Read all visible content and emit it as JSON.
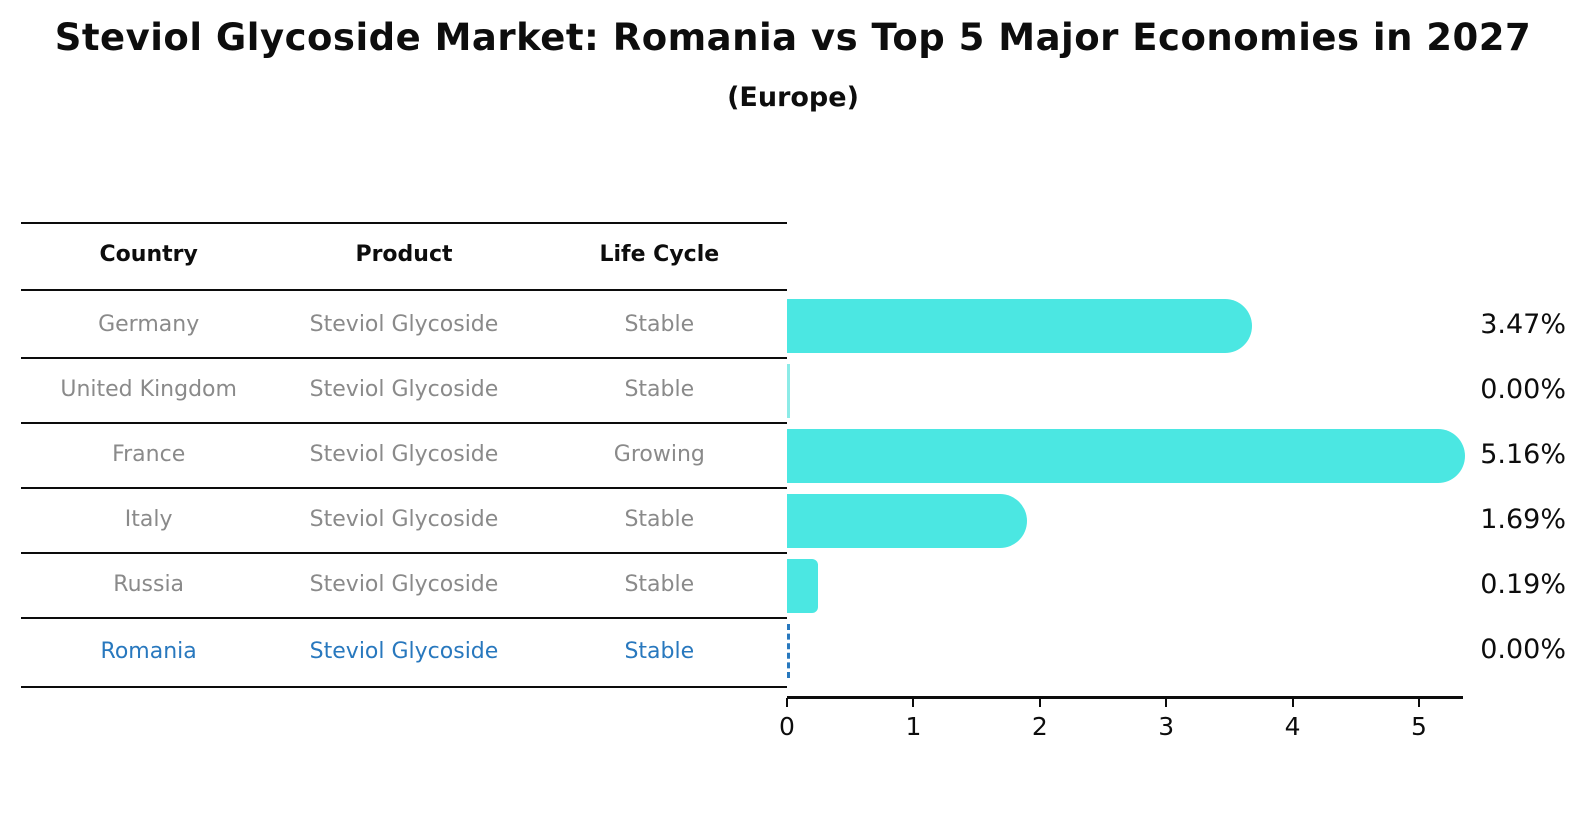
{
  "title": "Steviol Glycoside Market: Romania vs Top 5 Major Economies in 2027",
  "subtitle": "(Europe)",
  "table": {
    "headers": [
      "Country",
      "Product",
      "Life Cycle"
    ],
    "rows": [
      {
        "country": "Germany",
        "product": "Steviol Glycoside",
        "life_cycle": "Stable"
      },
      {
        "country": "United Kingdom",
        "product": "Steviol Glycoside",
        "life_cycle": "Stable"
      },
      {
        "country": "France",
        "product": "Steviol Glycoside",
        "life_cycle": "Growing"
      },
      {
        "country": "Italy",
        "product": "Steviol Glycoside",
        "life_cycle": "Stable"
      },
      {
        "country": "Russia",
        "product": "Steviol Glycoside",
        "life_cycle": "Stable"
      },
      {
        "country": "Romania",
        "product": "Steviol Glycoside",
        "life_cycle": "Stable"
      }
    ],
    "highlight_row": "Romania"
  },
  "chart_data": {
    "type": "bar",
    "orientation": "horizontal",
    "title": "Steviol Glycoside Market: Romania vs Top 5 Major Economies in 2027",
    "subtitle": "(Europe)",
    "categories": [
      "Germany",
      "United Kingdom",
      "France",
      "Italy",
      "Russia",
      "Romania"
    ],
    "values": [
      3.47,
      0.0,
      5.16,
      1.69,
      0.19,
      0.0
    ],
    "value_labels": [
      "3.47%",
      "0.00%",
      "5.16%",
      "1.69%",
      "0.19%",
      "0.00%"
    ],
    "xlabel": "",
    "ylabel": "",
    "xticks": [
      "0",
      "1",
      "2",
      "3",
      "4",
      "5"
    ],
    "xlim": [
      0,
      5.35
    ],
    "grid": false,
    "legend": "none",
    "bar_color": "#4be7e2",
    "highlight_color": "#2878be",
    "highlight_category": "Romania",
    "highlight_marker": "dashed zero line"
  },
  "colors": {
    "bar_turquoise": "#4be7e2",
    "romania_blue": "#2878be",
    "row_text_gray": "#8a8a8a",
    "text_black": "#0d0d0d"
  }
}
